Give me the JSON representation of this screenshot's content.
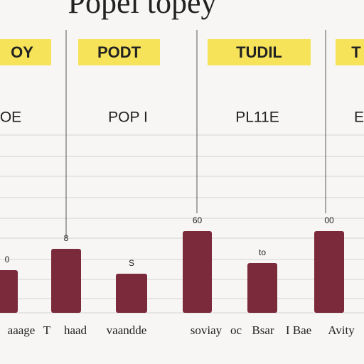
{
  "chart_data": {
    "type": "bar",
    "title": "Popel topey",
    "column_headers": [
      "OY",
      "PODT",
      "TUDIL",
      "T"
    ],
    "subheaders": [
      "OE",
      "POP I",
      "PL11E",
      "E"
    ],
    "categories": [
      null,
      null,
      null,
      null,
      null,
      null
    ],
    "values": [
      24,
      36,
      22,
      46,
      28,
      46
    ],
    "annotations": [
      "0",
      "8",
      "S",
      "60",
      "to",
      "00"
    ],
    "footer_labels": [
      "aaage",
      "T",
      "haad",
      "vaandde",
      "soviay",
      "oc",
      "Bsar",
      "I Bae",
      "Avity"
    ],
    "color": "#7b2a3b",
    "header_color": "#f7e35a",
    "ylim": [
      0,
      100
    ]
  }
}
